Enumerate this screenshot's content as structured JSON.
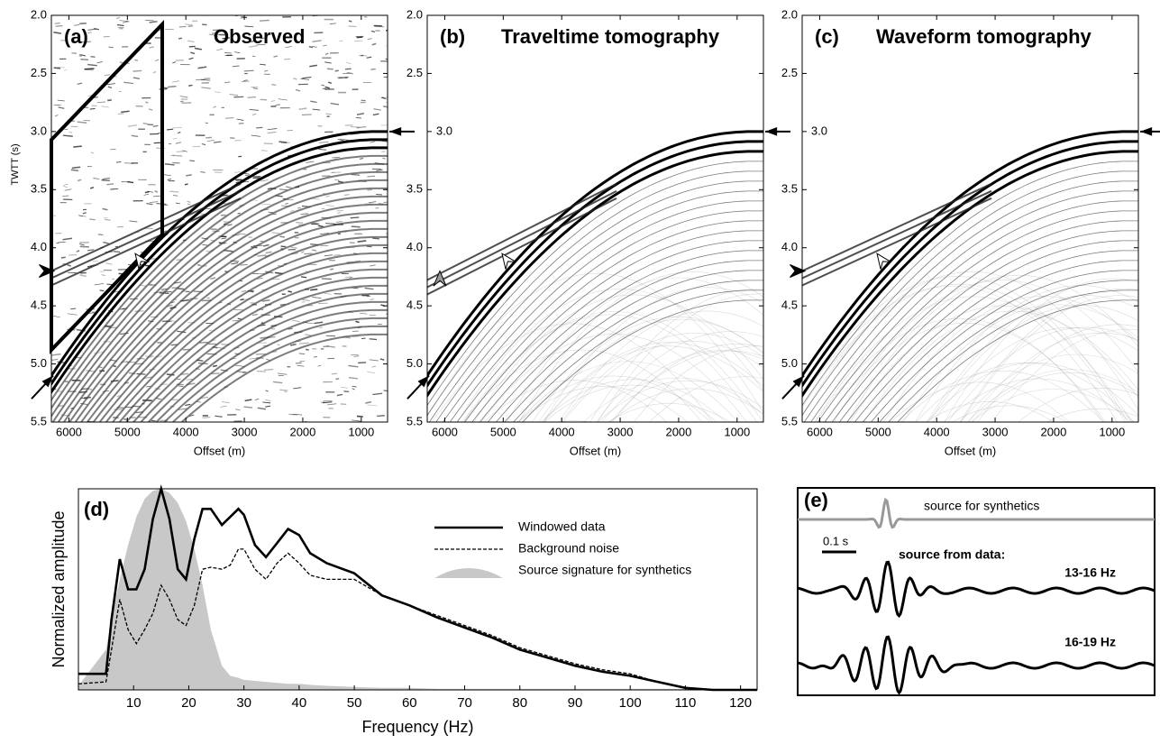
{
  "chart_data": [
    {
      "type": "seismic",
      "label": "(a)",
      "title": "Observed",
      "ylabel": "TWTT (s)",
      "xlabel": "Offset (m)",
      "xlim": [
        6300,
        550
      ],
      "ylim": [
        2.0,
        5.5
      ],
      "xticks": [
        6000,
        5000,
        4000,
        3000,
        2000,
        1000
      ],
      "yticks": [
        {
          "value": 2.0,
          "label": "2.0"
        },
        {
          "value": 2.5,
          "label": "2.5"
        },
        {
          "value": 3.0,
          "label": "3.0"
        },
        {
          "value": 3.5,
          "label": "3.5"
        },
        {
          "value": 4.0,
          "label": "4.0"
        },
        {
          "value": 4.5,
          "label": "4.5"
        },
        {
          "value": 5.0,
          "label": "5.0"
        },
        {
          "value": 5.5,
          "label": "5.5"
        }
      ]
    },
    {
      "type": "seismic",
      "label": "(b)",
      "title": "Traveltime tomography",
      "xlabel": "Offset (m)",
      "xlim": [
        6300,
        550
      ],
      "ylim": [
        2.0,
        5.5
      ],
      "xticks": [
        6000,
        5000,
        4000,
        3000,
        2000,
        1000
      ],
      "yticks": [
        {
          "value": 2.0,
          "label": "2.0"
        },
        {
          "value": 2.5,
          "label": "2.5"
        },
        {
          "value": 3.0,
          "label": "3.0"
        },
        {
          "value": 3.5,
          "label": "3.5"
        },
        {
          "value": 4.0,
          "label": "4.0"
        },
        {
          "value": 4.5,
          "label": "4.5"
        },
        {
          "value": 5.0,
          "label": "5.0"
        },
        {
          "value": 5.5,
          "label": "5.5"
        }
      ]
    },
    {
      "type": "seismic",
      "label": "(c)",
      "title": "Waveform tomography",
      "xlabel": "Offset (m)",
      "xlim": [
        6300,
        550
      ],
      "ylim": [
        2.0,
        5.5
      ],
      "xticks": [
        6000,
        5000,
        4000,
        3000,
        2000,
        1000
      ],
      "yticks": [
        {
          "value": 2.0,
          "label": "2.0"
        },
        {
          "value": 2.5,
          "label": "2.5"
        },
        {
          "value": 3.0,
          "label": "3.0"
        },
        {
          "value": 3.5,
          "label": "3.5"
        },
        {
          "value": 4.0,
          "label": "4.0"
        },
        {
          "value": 4.5,
          "label": "4.5"
        },
        {
          "value": 5.0,
          "label": "5.0"
        },
        {
          "value": 5.5,
          "label": "5.5"
        }
      ]
    },
    {
      "type": "line",
      "label": "(d)",
      "xlabel": "Frequency (Hz)",
      "ylabel": "Normalized amplitude",
      "xlim": [
        0,
        123
      ],
      "ylim": [
        0,
        1
      ],
      "xticks": [
        10,
        20,
        30,
        40,
        50,
        60,
        70,
        80,
        90,
        100,
        110,
        120
      ],
      "x": [
        0,
        5,
        6,
        7.5,
        9,
        10.5,
        12,
        13.5,
        15,
        16.5,
        18,
        19.5,
        21,
        22.5,
        24,
        26,
        27.5,
        29,
        30,
        32,
        34,
        36,
        38,
        40,
        42,
        45,
        50,
        55,
        60,
        65,
        70,
        75,
        80,
        85,
        90,
        95,
        100,
        105,
        110,
        115,
        120,
        123
      ],
      "series": [
        {
          "name": "Windowed data",
          "color": "#000000",
          "style": "solid",
          "values": [
            0.08,
            0.08,
            0.35,
            0.65,
            0.5,
            0.5,
            0.6,
            0.85,
            1.0,
            0.85,
            0.6,
            0.55,
            0.75,
            0.9,
            0.9,
            0.82,
            0.86,
            0.9,
            0.87,
            0.72,
            0.66,
            0.73,
            0.8,
            0.77,
            0.68,
            0.63,
            0.58,
            0.47,
            0.42,
            0.36,
            0.31,
            0.26,
            0.2,
            0.16,
            0.12,
            0.09,
            0.07,
            0.04,
            0.01,
            0,
            0,
            0
          ]
        },
        {
          "name": "Background noise",
          "color": "#000000",
          "style": "dashed",
          "values": [
            0.03,
            0.04,
            0.2,
            0.45,
            0.3,
            0.23,
            0.3,
            0.38,
            0.52,
            0.45,
            0.35,
            0.32,
            0.42,
            0.6,
            0.61,
            0.6,
            0.62,
            0.7,
            0.7,
            0.6,
            0.55,
            0.63,
            0.68,
            0.63,
            0.57,
            0.55,
            0.55,
            0.47,
            0.42,
            0.37,
            0.32,
            0.27,
            0.21,
            0.17,
            0.13,
            0.1,
            0.08,
            0.04,
            0.01,
            0,
            0,
            0
          ]
        },
        {
          "name": "Source signature for synthetics",
          "color": "#c8c8c8",
          "style": "area",
          "values": [
            0.02,
            0.2,
            0.35,
            0.55,
            0.72,
            0.86,
            0.95,
            0.99,
            1.0,
            0.98,
            0.93,
            0.84,
            0.7,
            0.52,
            0.3,
            0.12,
            0.07,
            0.06,
            0.05,
            0.045,
            0.04,
            0.035,
            0.03,
            0.03,
            0.025,
            0.02,
            0.015,
            0.01,
            0.01,
            0.005,
            0.005,
            0.005,
            0.005,
            0.005,
            0.005,
            0.005,
            0.005,
            0.005,
            0.005,
            0.005,
            0.005,
            0.005
          ]
        }
      ]
    },
    {
      "type": "wavelets",
      "label": "(e)",
      "top_label": "source for synthetics",
      "scale_label": "0.1 s",
      "data_heading": "source from data:",
      "traces": [
        "13-16 Hz",
        "16-19 Hz"
      ]
    }
  ]
}
